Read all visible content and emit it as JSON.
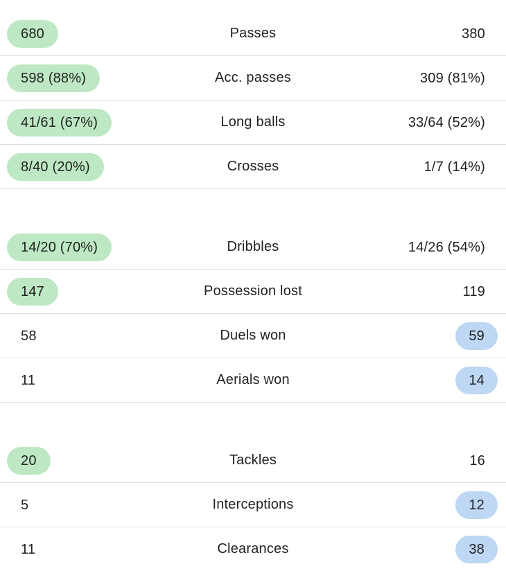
{
  "colors": {
    "home_highlight": "#bde8c3",
    "away_highlight": "#bdd7f4",
    "divider": "#dedede",
    "text": "#222222"
  },
  "groups": [
    {
      "rows": [
        {
          "home": "680",
          "label": "Passes",
          "away": "380",
          "highlight": "home"
        },
        {
          "home": "598 (88%)",
          "label": "Acc. passes",
          "away": "309 (81%)",
          "highlight": "home"
        },
        {
          "home": "41/61 (67%)",
          "label": "Long balls",
          "away": "33/64 (52%)",
          "highlight": "home"
        },
        {
          "home": "8/40 (20%)",
          "label": "Crosses",
          "away": "1/7 (14%)",
          "highlight": "home"
        }
      ]
    },
    {
      "rows": [
        {
          "home": "14/20 (70%)",
          "label": "Dribbles",
          "away": "14/26 (54%)",
          "highlight": "home"
        },
        {
          "home": "147",
          "label": "Possession lost",
          "away": "119",
          "highlight": "home"
        },
        {
          "home": "58",
          "label": "Duels won",
          "away": "59",
          "highlight": "away"
        },
        {
          "home": "11",
          "label": "Aerials won",
          "away": "14",
          "highlight": "away"
        }
      ]
    },
    {
      "rows": [
        {
          "home": "20",
          "label": "Tackles",
          "away": "16",
          "highlight": "home"
        },
        {
          "home": "5",
          "label": "Interceptions",
          "away": "12",
          "highlight": "away"
        },
        {
          "home": "11",
          "label": "Clearances",
          "away": "38",
          "highlight": "away"
        }
      ]
    }
  ]
}
